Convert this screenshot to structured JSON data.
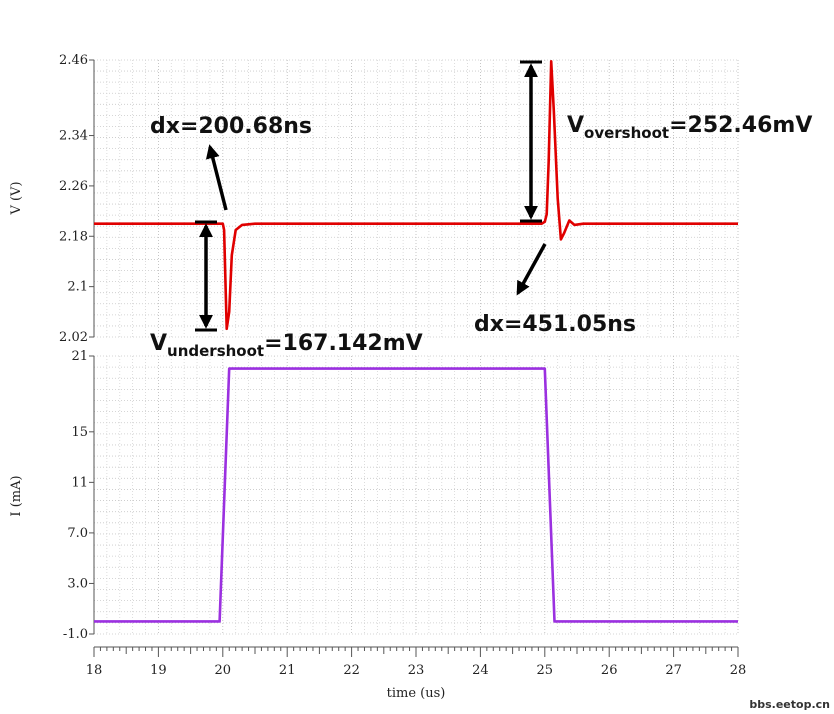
{
  "chart_data": [
    {
      "type": "line",
      "panel": "top",
      "ylabel": "V (V)",
      "ylim": [
        2.02,
        2.46
      ],
      "yticks": [
        "2.46",
        "2.34",
        "2.26",
        "2.18",
        "2.1",
        "2.02"
      ],
      "ytick_values": [
        2.46,
        2.34,
        2.26,
        2.18,
        2.1,
        2.02
      ],
      "xlim": [
        18,
        28
      ],
      "grid": true,
      "color": "#e00000",
      "series": [
        {
          "x": [
            18,
            19.98,
            20.0,
            20.02,
            20.06,
            20.1,
            20.14,
            20.2,
            20.3,
            20.5,
            21,
            22,
            23,
            24,
            24.95,
            25.0,
            25.03,
            25.06,
            25.1,
            25.14,
            25.2,
            25.25,
            25.3,
            25.38,
            25.46,
            25.6,
            26,
            27,
            28
          ],
          "y": [
            2.2,
            2.2,
            2.2,
            2.19,
            2.033,
            2.06,
            2.15,
            2.19,
            2.198,
            2.2,
            2.2,
            2.2,
            2.2,
            2.2,
            2.2,
            2.203,
            2.215,
            2.3,
            2.458,
            2.38,
            2.24,
            2.175,
            2.185,
            2.205,
            2.198,
            2.2,
            2.2,
            2.2,
            2.2
          ]
        }
      ]
    },
    {
      "type": "line",
      "panel": "bottom",
      "xlabel": "time (us)",
      "ylabel": "I (mA)",
      "ylim": [
        -1.0,
        21
      ],
      "yticks": [
        "21",
        "15",
        "11",
        "7.0",
        "3.0",
        "-1.0"
      ],
      "ytick_values": [
        21,
        15,
        11,
        7.0,
        3.0,
        -1.0
      ],
      "xlim": [
        18,
        28
      ],
      "xticks": [
        "18",
        "19",
        "20",
        "21",
        "22",
        "23",
        "24",
        "25",
        "26",
        "27",
        "28"
      ],
      "grid": true,
      "color": "#9b30e0",
      "series": [
        {
          "x": [
            18,
            19.95,
            20.1,
            25.0,
            25.15,
            28
          ],
          "y": [
            0,
            0,
            20,
            20,
            0,
            0
          ]
        }
      ]
    }
  ],
  "annotations": {
    "dx_left": "dx=200.68ns",
    "dx_right": "dx=451.05ns",
    "undershoot_main": "V",
    "undershoot_sub": "undershoot",
    "undershoot_value": "=167.142mV",
    "overshoot_main": "V",
    "overshoot_sub": "overshoot",
    "overshoot_value": "=252.46mV"
  },
  "watermark": "bbs.eetop.cn"
}
